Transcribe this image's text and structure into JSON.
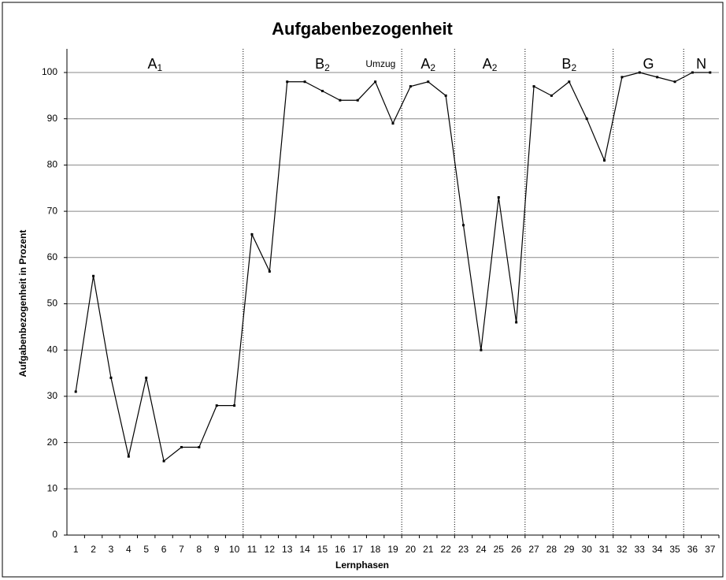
{
  "chart_data": {
    "type": "line",
    "title": "Aufgabenbezogenheit",
    "x_label": "Lernphasen",
    "y_label": "Aufgabenbezogenheit in Prozent",
    "categories": [
      "1",
      "2",
      "3",
      "4",
      "5",
      "6",
      "7",
      "8",
      "9",
      "10",
      "11",
      "12",
      "13",
      "14",
      "15",
      "16",
      "17",
      "18",
      "19",
      "20",
      "21",
      "22",
      "23",
      "24",
      "25",
      "26",
      "27",
      "28",
      "29",
      "30",
      "31",
      "32",
      "33",
      "34",
      "35",
      "36",
      "37"
    ],
    "values": [
      31,
      56,
      34,
      17,
      34,
      16,
      19,
      19,
      28,
      28,
      65,
      57,
      98,
      98,
      96,
      94,
      94,
      98,
      89,
      97,
      98,
      95,
      67,
      40,
      73,
      46,
      97,
      95,
      98,
      90,
      81,
      99,
      100,
      99,
      98,
      100,
      100
    ],
    "color": "#000000",
    "ylim": [
      0,
      100
    ],
    "yticks": [
      0,
      10,
      20,
      30,
      40,
      50,
      60,
      70,
      80,
      90,
      100
    ],
    "grid": true,
    "phases": [
      {
        "label": "A",
        "subscript": "1",
        "start": 1,
        "end": 10
      },
      {
        "label": "B",
        "subscript": "2",
        "start": 11,
        "end": 19
      },
      {
        "label": "A",
        "subscript": "2",
        "start": 20,
        "end": 22
      },
      {
        "label": "A",
        "subscript": "2",
        "start": 23,
        "end": 26
      },
      {
        "label": "B",
        "subscript": "2",
        "start": 27,
        "end": 31
      },
      {
        "label": "G",
        "start": 32,
        "end": 35
      },
      {
        "label": "N",
        "start": 36,
        "end": 37
      }
    ],
    "annotations": [
      {
        "text": "Umzug",
        "x": 18.3
      }
    ]
  }
}
